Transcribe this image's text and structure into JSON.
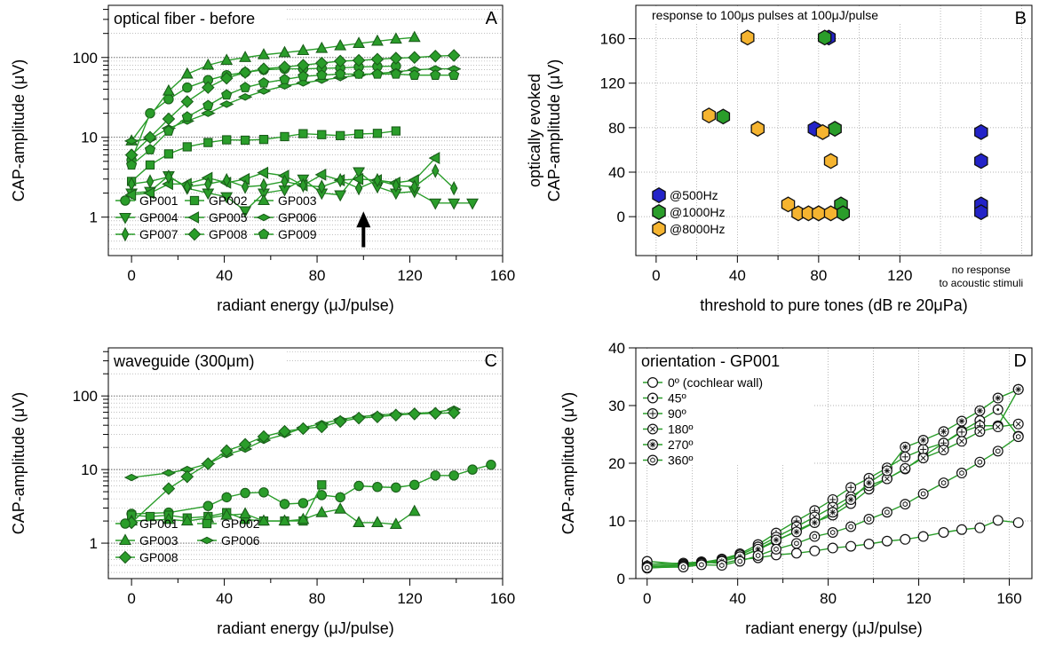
{
  "colors": {
    "green": "#2a9d2a",
    "green_edge": "#1a5e1a",
    "blue": "#2323c8",
    "orange": "#f5b430",
    "grid": "#9a9a9a"
  },
  "chart_data": [
    {
      "id": "A",
      "type": "line",
      "scale": "log",
      "letter": "A",
      "title": "optical fiber - before",
      "xlabel": "radiant energy (μJ/pulse)",
      "ylabel": "CAP-amplitude (μV)",
      "xlim": [
        -10,
        160
      ],
      "ylim": [
        0.3,
        500
      ],
      "xticks": [
        0,
        40,
        80,
        120,
        160
      ],
      "yticks": [
        1,
        10,
        100
      ],
      "arrow_at": {
        "x": 100,
        "y_from": 0.42,
        "y_to": 1.12
      },
      "legend_cols": 3,
      "series": [
        {
          "name": "GP001",
          "marker": "circle",
          "x": [
            0,
            8,
            16,
            24,
            33,
            41,
            49,
            57,
            66,
            74,
            82,
            90,
            98,
            106,
            114
          ],
          "y": [
            5.2,
            20,
            30,
            42,
            52,
            60,
            65,
            70,
            72,
            72,
            73,
            74,
            76,
            77,
            78
          ]
        },
        {
          "name": "GP002",
          "marker": "square",
          "x": [
            0,
            8,
            16,
            24,
            33,
            41,
            49,
            57,
            66,
            74,
            82,
            90,
            98,
            106,
            114
          ],
          "y": [
            2.8,
            4.5,
            6.2,
            7.6,
            8.6,
            9.3,
            9.2,
            9.4,
            10.2,
            11.1,
            10.8,
            10.5,
            11,
            11.2,
            12
          ]
        },
        {
          "name": "GP003",
          "marker": "triangle-up",
          "x": [
            0,
            16,
            24,
            33,
            41,
            49,
            57,
            66,
            74,
            82,
            90,
            98,
            106,
            114,
            122
          ],
          "y": [
            9,
            38,
            62,
            80,
            92,
            100,
            108,
            115,
            122,
            130,
            140,
            150,
            160,
            170,
            178
          ]
        },
        {
          "name": "GP004",
          "marker": "triangle-down",
          "x": [
            0,
            8,
            16,
            24,
            33,
            41,
            49,
            57,
            66,
            74,
            82,
            90,
            98,
            106,
            114,
            122,
            131,
            139,
            147
          ],
          "y": [
            2.0,
            2.1,
            3.3,
            2.3,
            2.0,
            1.8,
            1.2,
            2.0,
            2.2,
            3.0,
            2.0,
            1.9,
            3.7,
            2.4,
            2.0,
            2.1,
            1.5,
            1.5,
            1.5
          ]
        },
        {
          "name": "GP005",
          "marker": "triangle-left",
          "x": [
            0,
            8,
            16,
            24,
            33,
            41,
            49,
            57,
            66,
            74,
            82,
            90,
            98,
            106,
            114,
            122,
            131
          ],
          "y": [
            1.9,
            2.0,
            2.6,
            2.6,
            3.1,
            2.7,
            3.0,
            3.6,
            3.3,
            2.5,
            3.4,
            2.9,
            3.0,
            2.9,
            2.7,
            2.9,
            5.5
          ]
        },
        {
          "name": "GP006",
          "marker": "diamond-h",
          "x": [
            0,
            8,
            16,
            24,
            33,
            41,
            49,
            57,
            66,
            74,
            82,
            90,
            98,
            106,
            114,
            122,
            131,
            139
          ],
          "y": [
            9,
            9.5,
            13,
            16,
            20,
            26,
            32,
            38,
            44,
            48,
            52,
            56,
            60,
            63,
            66,
            70,
            72,
            72
          ]
        },
        {
          "name": "GP007",
          "marker": "thin-diamond",
          "x": [
            0,
            8,
            16,
            24,
            33,
            41,
            49,
            57,
            66,
            74,
            82,
            90,
            98,
            106,
            114,
            122,
            131,
            139
          ],
          "y": [
            2.6,
            2.8,
            3.2,
            2.4,
            2.6,
            2.9,
            2.4,
            2.5,
            2.8,
            2.5,
            2.4,
            2.9,
            2.3,
            2.9,
            2.5,
            2.4,
            3.8,
            2.3
          ]
        },
        {
          "name": "GP008",
          "marker": "diamond",
          "x": [
            0,
            8,
            16,
            24,
            33,
            41,
            49,
            57,
            66,
            74,
            82,
            90,
            98,
            106,
            114,
            122,
            131,
            139
          ],
          "y": [
            6,
            10,
            17,
            28,
            42,
            55,
            65,
            72,
            76,
            80,
            85,
            90,
            92,
            95,
            98,
            100,
            104,
            106
          ]
        },
        {
          "name": "GP009",
          "marker": "pentagon",
          "x": [
            0,
            8,
            16,
            24,
            33,
            41,
            49,
            57,
            66,
            74,
            82,
            90,
            98,
            106,
            114,
            122,
            131,
            139
          ],
          "y": [
            4.5,
            7,
            12,
            18,
            25,
            34,
            42,
            48,
            53,
            58,
            60,
            62,
            62,
            62,
            62,
            60,
            60,
            60
          ]
        }
      ]
    },
    {
      "id": "B",
      "type": "scatter",
      "scale": "linear",
      "letter": "B",
      "title": "response to 100μs pulses at 100μJ/pulse",
      "xlabel": "threshold to pure tones (dB re 20μPa)",
      "ylabel": "optically evoked CAP-amplitude (μV)",
      "ylabel_lines": [
        "optically evoked",
        "CAP-amplitude (μV)"
      ],
      "xlim": [
        -10,
        185
      ],
      "ylim": [
        -35,
        190
      ],
      "xticks": [
        0,
        40,
        80,
        120
      ],
      "yticks": [
        0,
        40,
        80,
        120,
        160
      ],
      "grid_x": [
        0,
        20,
        40,
        60,
        80,
        100,
        120,
        140,
        160,
        180
      ],
      "note": [
        "no response",
        "to acoustic stimuli"
      ],
      "series": [
        {
          "name": "@500Hz",
          "color": "blue",
          "x": [
            85,
            78,
            80,
            160,
            160,
            160,
            160
          ],
          "y": [
            161,
            79,
            3,
            76,
            50,
            11,
            4
          ]
        },
        {
          "name": "@1000Hz",
          "color": "green",
          "x": [
            83,
            33,
            88,
            91,
            92
          ],
          "y": [
            161,
            90,
            79,
            11,
            3
          ]
        },
        {
          "name": "@8000Hz",
          "color": "orange",
          "x": [
            45,
            26,
            50,
            82,
            86,
            65,
            70,
            75,
            80,
            86
          ],
          "y": [
            161,
            91,
            79,
            76,
            50,
            11,
            3,
            3,
            3,
            3
          ]
        }
      ]
    },
    {
      "id": "C",
      "type": "line",
      "scale": "log",
      "letter": "C",
      "title": "waveguide (300μm)",
      "xlabel": "radiant energy (μJ/pulse)",
      "ylabel": "CAP-amplitude (μV)",
      "xlim": [
        -10,
        160
      ],
      "ylim": [
        0.3,
        500
      ],
      "xticks": [
        0,
        40,
        80,
        120,
        160
      ],
      "yticks": [
        1,
        10,
        100
      ],
      "legend_cols": 2,
      "series": [
        {
          "name": "GP001",
          "marker": "circle",
          "x": [
            0,
            16,
            33,
            41,
            49,
            57,
            66,
            74,
            82,
            90,
            98,
            106,
            114,
            122,
            131,
            139,
            147,
            155
          ],
          "y": [
            2.5,
            2.6,
            3.2,
            4.2,
            4.8,
            4.9,
            3.4,
            3.5,
            4.5,
            4.2,
            6,
            5.8,
            5.7,
            6.2,
            8.3,
            8.3,
            10,
            11.6
          ]
        },
        {
          "name": "GP002",
          "marker": "square",
          "x": [
            0,
            8,
            16,
            24,
            33,
            41,
            49,
            57,
            66,
            74,
            82
          ],
          "y": [
            2.4,
            2.3,
            2.4,
            2.2,
            2.3,
            2.6,
            2.1,
            2.0,
            2.0,
            2.0,
            6.2
          ]
        },
        {
          "name": "GP003",
          "marker": "triangle-up",
          "x": [
            0,
            16,
            24,
            33,
            41,
            49,
            57,
            66,
            74,
            82,
            90,
            98,
            106,
            114,
            122
          ],
          "y": [
            2.0,
            2.1,
            2.0,
            2.2,
            2.4,
            2.5,
            2.0,
            2.0,
            2.1,
            2.6,
            2.9,
            1.9,
            1.9,
            1.8,
            2.7
          ]
        },
        {
          "name": "GP006",
          "marker": "diamond-h",
          "x": [
            0,
            16,
            24,
            33,
            41,
            49,
            57,
            66,
            74,
            82,
            90,
            98,
            106,
            114,
            122,
            131,
            139
          ],
          "y": [
            7.8,
            9,
            10,
            12,
            16,
            19,
            25,
            30,
            37,
            42,
            48,
            52,
            55,
            57,
            58,
            60,
            66
          ]
        },
        {
          "name": "GP008",
          "marker": "diamond",
          "x": [
            0,
            16,
            24,
            33,
            41,
            49,
            57,
            66,
            74,
            82,
            90,
            98,
            106,
            114,
            122,
            131,
            139
          ],
          "y": [
            1.9,
            5.5,
            8,
            12,
            18,
            22,
            28,
            33,
            36,
            38,
            45,
            50,
            52,
            55,
            57,
            58,
            59
          ]
        }
      ]
    },
    {
      "id": "D",
      "type": "line",
      "scale": "linear",
      "letter": "D",
      "title": "orientation - GP001",
      "xlabel": "radiant energy (μJ/pulse)",
      "ylabel": "CAP-amplitude (μV)",
      "xlim": [
        -5,
        170
      ],
      "ylim": [
        0,
        40
      ],
      "xticks": [
        0,
        40,
        80,
        120,
        160
      ],
      "yticks": [
        0,
        10,
        20,
        30,
        40
      ],
      "grid_x": [
        0,
        20,
        40,
        60,
        80,
        100,
        120,
        140,
        160
      ],
      "legend_cols": 1,
      "series": [
        {
          "name": "0º (cochlear wall)",
          "marker": "open-circle",
          "x": [
            0,
            16,
            24,
            33,
            41,
            49,
            57,
            66,
            74,
            82,
            90,
            98,
            106,
            114,
            122,
            131,
            139,
            147,
            155,
            164
          ],
          "y": [
            2.5,
            2.7,
            2.9,
            2.6,
            3.3,
            3.6,
            4.1,
            4.4,
            4.8,
            5.3,
            5.6,
            6.0,
            6.5,
            6.8,
            7.3,
            8.0,
            8.5,
            8.8,
            10.1,
            9.7
          ]
        },
        {
          "name": "45º",
          "marker": "open-circle-dot",
          "x": [
            0,
            16,
            24,
            33,
            41,
            49,
            57,
            66,
            74,
            82,
            90,
            98,
            106,
            114,
            122,
            131,
            139,
            147,
            155,
            164
          ],
          "y": [
            3.0,
            2.5,
            2.9,
            3.0,
            3.8,
            5.0,
            6.5,
            8.3,
            9.8,
            11.0,
            13.0,
            15.5,
            17.3,
            19.0,
            21.2,
            23.5,
            25.6,
            27.4,
            29.3,
            24.7
          ]
        },
        {
          "name": "90º",
          "marker": "open-circle-plus",
          "x": [
            0,
            16,
            24,
            33,
            41,
            49,
            57,
            66,
            74,
            82,
            90,
            98,
            106,
            114,
            122,
            131,
            139,
            147,
            155,
            164
          ],
          "y": [
            2.2,
            2.5,
            2.8,
            3.4,
            4.3,
            5.9,
            7.9,
            10.0,
            11.8,
            13.7,
            15.8,
            17.4,
            19.2,
            21.1,
            22.4,
            23.5,
            25.4,
            26.5,
            26.5,
            32.8
          ]
        },
        {
          "name": "180º",
          "marker": "open-circle-x",
          "x": [
            0,
            16,
            24,
            33,
            41,
            49,
            57,
            66,
            74,
            82,
            90,
            98,
            106,
            114,
            122,
            131,
            139,
            147,
            155,
            164
          ],
          "y": [
            2.0,
            2.3,
            2.7,
            3.2,
            4.1,
            5.5,
            7.2,
            9.0,
            10.7,
            12.4,
            14.2,
            16.1,
            17.3,
            19.1,
            20.9,
            22.3,
            23.8,
            25.5,
            26.3,
            26.8
          ]
        },
        {
          "name": "270º",
          "marker": "open-circle-star",
          "x": [
            0,
            16,
            24,
            33,
            41,
            49,
            57,
            66,
            74,
            82,
            90,
            98,
            106,
            114,
            122,
            131,
            139,
            147,
            155,
            164
          ],
          "y": [
            1.8,
            2.2,
            2.6,
            3.0,
            3.8,
            5.1,
            6.7,
            8.1,
            9.7,
            11.5,
            13.7,
            16.6,
            18.7,
            22.8,
            24.0,
            25.5,
            27.3,
            29.1,
            31.3,
            32.8
          ]
        },
        {
          "name": "360º",
          "marker": "open-hexagon",
          "x": [
            0,
            16,
            24,
            33,
            41,
            49,
            57,
            66,
            74,
            82,
            90,
            98,
            106,
            114,
            122,
            131,
            139,
            147,
            155,
            164
          ],
          "y": [
            1.9,
            2.0,
            2.4,
            2.3,
            3.0,
            4.0,
            5.1,
            6.1,
            7.3,
            8.0,
            9.0,
            10.3,
            11.5,
            12.9,
            14.7,
            16.6,
            18.3,
            20.2,
            22.1,
            24.6
          ]
        }
      ]
    }
  ]
}
